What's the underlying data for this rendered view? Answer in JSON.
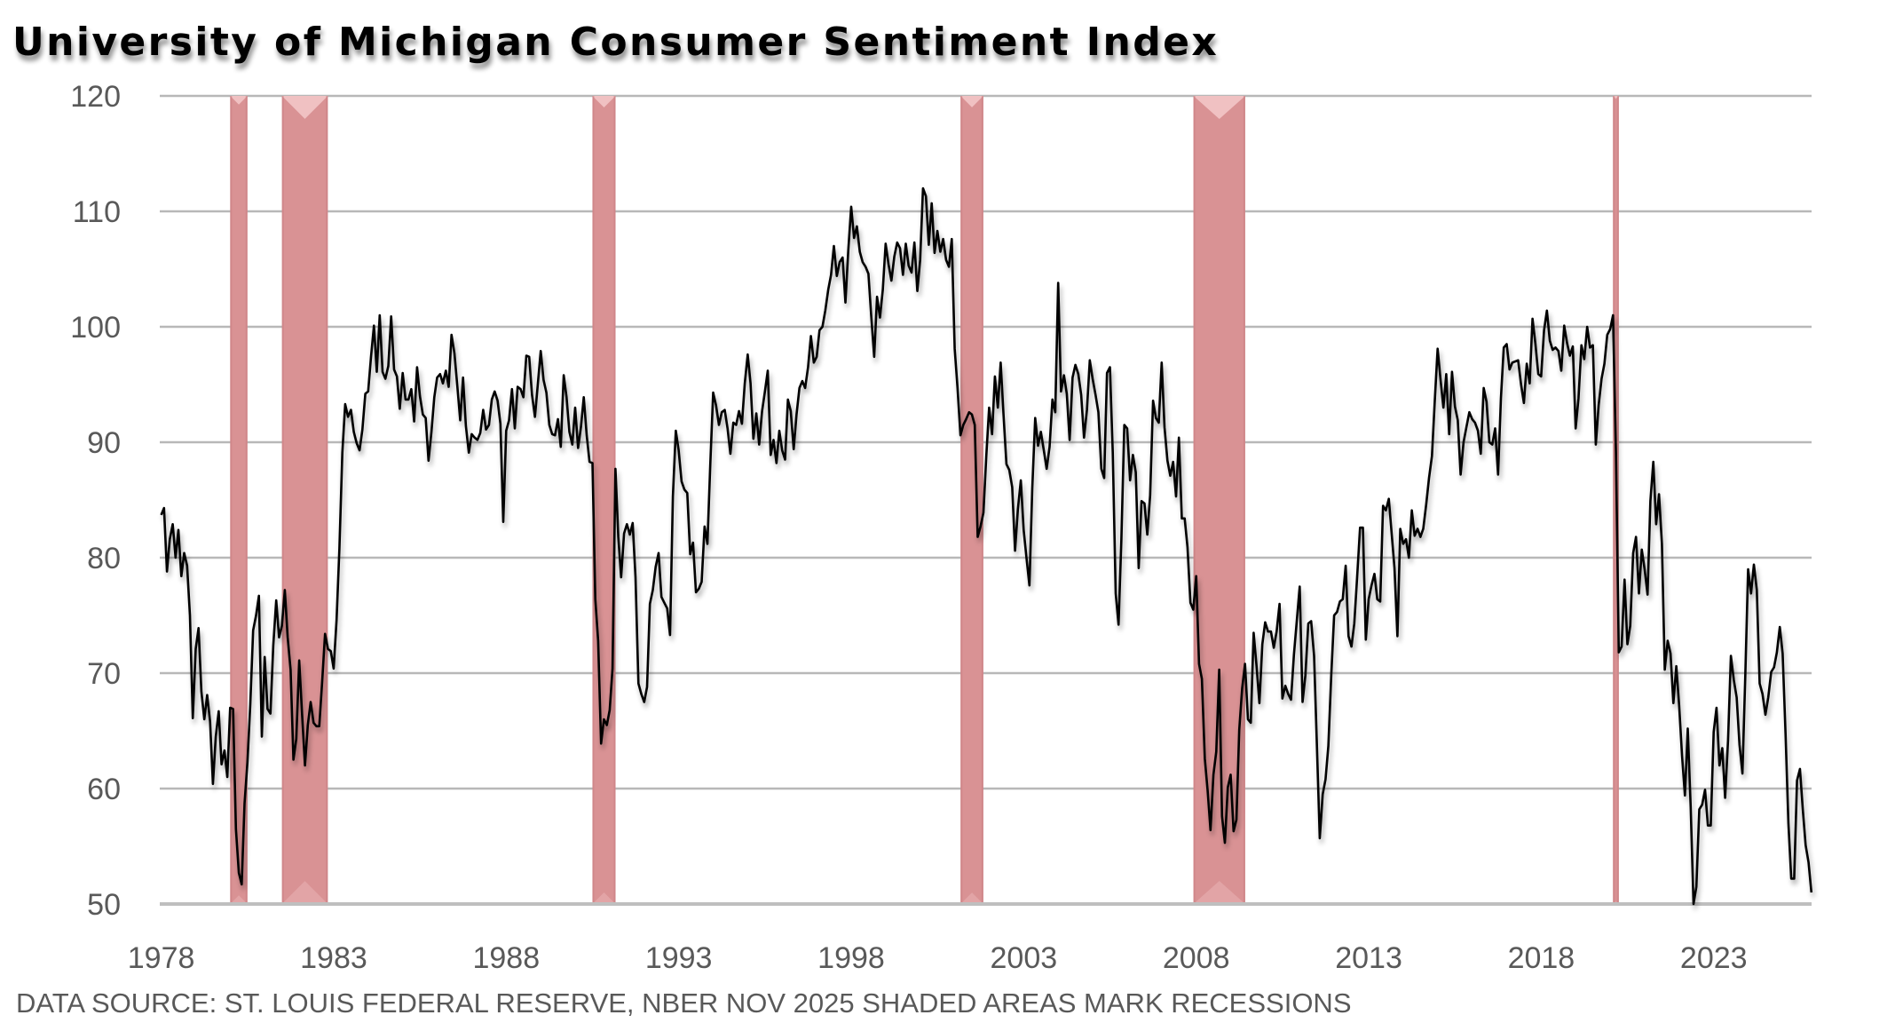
{
  "chart_data": {
    "type": "line",
    "title": "University of Michigan Consumer Sentiment Index",
    "xlabel": "",
    "ylabel": "",
    "ylim": [
      50,
      120
    ],
    "yticks": [
      50,
      60,
      70,
      80,
      90,
      100,
      110,
      120
    ],
    "xlim": [
      1978.0,
      2025.83
    ],
    "xticks": [
      1978,
      1983,
      1988,
      1993,
      1998,
      2003,
      2008,
      2013,
      2018,
      2023
    ],
    "grid": true,
    "legend": "none",
    "source_note": "DATA SOURCE: ST. LOUIS FEDERAL RESERVE, NBER NOV 2025 SHADED AREAS MARK RECESSIONS",
    "line_color": "#000000",
    "recession_color": "#d99294",
    "recessions": [
      {
        "start": 1980.0,
        "end": 1980.5
      },
      {
        "start": 1981.5,
        "end": 1982.83
      },
      {
        "start": 1990.5,
        "end": 1991.17
      },
      {
        "start": 2001.17,
        "end": 2001.83
      },
      {
        "start": 2007.92,
        "end": 2009.42
      },
      {
        "start": 2020.08,
        "end": 2020.25
      }
    ],
    "series": [
      {
        "name": "Consumer Sentiment",
        "start_year": 1978.0,
        "step_years": 0.08333,
        "values": [
          83.7,
          84.3,
          78.8,
          81.6,
          82.9,
          80.0,
          82.4,
          78.4,
          80.4,
          79.3,
          75.0,
          66.1,
          72.1,
          73.9,
          68.4,
          66.0,
          68.1,
          65.8,
          60.4,
          64.5,
          66.7,
          62.1,
          63.3,
          61.0,
          67.0,
          66.9,
          56.5,
          52.7,
          51.7,
          58.7,
          62.3,
          67.3,
          73.7,
          75.0,
          76.7,
          64.5,
          71.4,
          66.9,
          66.5,
          72.4,
          76.3,
          73.1,
          74.1,
          77.2,
          73.1,
          70.3,
          62.5,
          64.3,
          71.1,
          66.5,
          62.0,
          65.5,
          67.5,
          65.7,
          65.4,
          65.4,
          69.3,
          73.4,
          72.1,
          71.9,
          70.4,
          74.6,
          80.8,
          89.1,
          93.3,
          92.2,
          92.8,
          90.9,
          89.9,
          89.3,
          91.1,
          94.2,
          94.4,
          97.4,
          100.1,
          96.1,
          101.0,
          96.1,
          95.5,
          96.6,
          100.9,
          96.3,
          95.7,
          92.9,
          96.0,
          93.7,
          93.7,
          94.6,
          91.8,
          96.5,
          94.0,
          92.4,
          92.1,
          88.4,
          90.9,
          93.9,
          95.6,
          95.9,
          95.1,
          96.2,
          94.8,
          99.3,
          97.7,
          94.9,
          91.9,
          95.6,
          91.4,
          89.1,
          90.7,
          90.4,
          90.2,
          90.8,
          92.8,
          91.1,
          91.5,
          93.7,
          94.4,
          93.6,
          91.6,
          83.1,
          91.0,
          91.9,
          94.6,
          91.2,
          94.8,
          94.6,
          93.9,
          97.5,
          97.4,
          94.1,
          92.2,
          95.0,
          97.9,
          95.4,
          94.3,
          91.5,
          90.7,
          90.6,
          92.0,
          89.6,
          95.8,
          93.9,
          90.9,
          89.8,
          93.0,
          89.5,
          91.3,
          93.9,
          90.6,
          88.3,
          88.2,
          76.4,
          72.8,
          63.9,
          66.0,
          65.5,
          66.8,
          70.4,
          87.7,
          81.8,
          78.3,
          82.1,
          82.9,
          82.0,
          83.0,
          78.3,
          69.1,
          68.2,
          67.5,
          68.8,
          76.0,
          77.2,
          79.2,
          80.4,
          76.6,
          76.1,
          75.6,
          73.3,
          85.3,
          91.0,
          89.3,
          86.6,
          85.9,
          85.6,
          80.3,
          81.3,
          77.0,
          77.3,
          77.9,
          82.7,
          81.2,
          88.2,
          94.3,
          93.2,
          91.5,
          92.6,
          92.8,
          91.2,
          89.0,
          91.7,
          91.5,
          92.7,
          91.6,
          95.1,
          97.6,
          95.1,
          90.3,
          92.5,
          89.8,
          92.7,
          94.4,
          96.2,
          88.9,
          90.2,
          88.2,
          91.0,
          89.3,
          88.5,
          93.7,
          92.7,
          89.4,
          92.4,
          94.7,
          95.3,
          94.7,
          96.5,
          99.2,
          96.9,
          97.4,
          99.7,
          100.0,
          101.4,
          103.2,
          104.5,
          107.0,
          104.4,
          105.6,
          106.0,
          102.1,
          106.6,
          110.4,
          107.7,
          108.7,
          106.5,
          105.6,
          105.2,
          104.6,
          100.9,
          97.4,
          102.6,
          100.8,
          103.2,
          107.2,
          105.4,
          104.0,
          106.1,
          107.3,
          106.8,
          104.5,
          107.2,
          105.3,
          104.7,
          107.3,
          103.1,
          105.8,
          112.0,
          111.3,
          107.1,
          110.7,
          106.4,
          108.3,
          106.5,
          107.6,
          105.8,
          105.2,
          107.6,
          98.1,
          94.7,
          90.6,
          91.5,
          92.0,
          92.6,
          92.4,
          91.5,
          81.8,
          82.7,
          83.9,
          88.8,
          93.0,
          90.7,
          95.7,
          93.0,
          96.9,
          92.4,
          88.1,
          87.6,
          86.1,
          80.6,
          84.2,
          86.7,
          82.4,
          79.9,
          77.6,
          86.0,
          92.1,
          89.7,
          90.9,
          89.3,
          87.7,
          89.6,
          93.7,
          92.6,
          103.8,
          94.4,
          95.8,
          94.2,
          90.2,
          95.6,
          96.7,
          95.9,
          94.1,
          90.4,
          92.8,
          97.1,
          95.5,
          94.1,
          92.6,
          87.7,
          86.9,
          96.0,
          96.5,
          89.1,
          76.9,
          74.2,
          81.6,
          91.5,
          91.2,
          86.7,
          88.9,
          87.4,
          79.1,
          84.9,
          84.7,
          82.0,
          85.4,
          93.6,
          92.1,
          91.7,
          96.9,
          91.3,
          88.4,
          87.1,
          88.3,
          85.3,
          90.4,
          83.4,
          83.4,
          80.9,
          76.1,
          75.5,
          78.4,
          70.8,
          69.5,
          62.6,
          59.8,
          56.4,
          61.2,
          63.2,
          70.3,
          57.6,
          55.3,
          60.1,
          61.2,
          56.3,
          57.3,
          65.1,
          68.7,
          70.8,
          66.0,
          65.7,
          73.5,
          70.6,
          67.4,
          72.5,
          74.4,
          73.6,
          73.6,
          72.2,
          73.6,
          76.0,
          67.8,
          68.9,
          68.2,
          67.7,
          71.6,
          74.5,
          77.5,
          67.5,
          69.8,
          74.3,
          74.5,
          71.5,
          63.7,
          55.7,
          59.5,
          60.8,
          63.7,
          69.9,
          75.0,
          75.3,
          76.2,
          76.4,
          79.3,
          73.2,
          72.3,
          74.3,
          78.3,
          82.6,
          82.6,
          72.9,
          76.4,
          77.6,
          78.6,
          76.4,
          76.2,
          84.5,
          84.1,
          85.1,
          82.1,
          79.1,
          73.2,
          82.5,
          81.2,
          81.6,
          80.0,
          84.1,
          81.9,
          82.5,
          81.8,
          82.5,
          84.6,
          86.9,
          88.8,
          93.6,
          98.1,
          95.4,
          93.0,
          95.9,
          90.7,
          96.1,
          93.1,
          91.9,
          87.2,
          90.0,
          91.3,
          92.6,
          92.0,
          91.7,
          91.0,
          89.0,
          94.7,
          93.5,
          90.0,
          89.8,
          91.2,
          87.2,
          93.8,
          98.2,
          98.5,
          96.3,
          96.9,
          97.0,
          97.1,
          95.0,
          93.4,
          96.8,
          95.1,
          100.7,
          98.5,
          95.9,
          95.7,
          99.7,
          101.4,
          98.8,
          98.0,
          98.2,
          97.9,
          96.2,
          100.1,
          98.6,
          97.5,
          98.3,
          91.2,
          93.8,
          98.4,
          97.2,
          100.0,
          98.2,
          98.4,
          89.8,
          93.2,
          95.5,
          96.8,
          99.3,
          99.8,
          101.0,
          89.1,
          71.8,
          72.3,
          78.1,
          72.5,
          74.1,
          80.4,
          81.8,
          76.9,
          80.7,
          79.0,
          76.8,
          84.9,
          88.3,
          82.9,
          85.5,
          81.2,
          70.3,
          72.8,
          71.7,
          67.4,
          70.6,
          67.2,
          62.8,
          59.4,
          65.2,
          58.4,
          50.0,
          51.5,
          58.2,
          58.6,
          59.9,
          56.8,
          56.8,
          64.9,
          67.0,
          62.0,
          63.5,
          59.2,
          64.2,
          71.5,
          69.4,
          67.9,
          63.8,
          61.3,
          69.7,
          79.0,
          76.9,
          79.4,
          77.2,
          69.1,
          68.2,
          66.4,
          67.9,
          70.1,
          70.5,
          71.8,
          74.0,
          71.7,
          64.7,
          57.0,
          52.2,
          52.2,
          60.7,
          61.7,
          58.2,
          55.1,
          53.6,
          51.0
        ]
      }
    ]
  }
}
